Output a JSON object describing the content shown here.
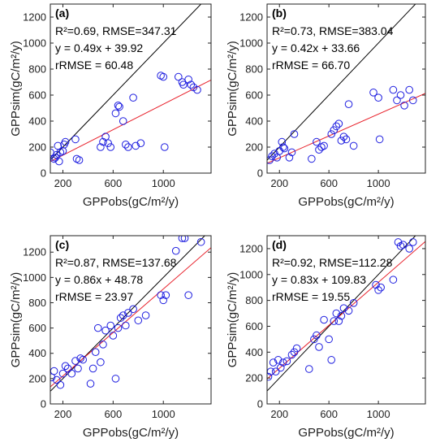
{
  "chart_data": [
    {
      "type": "scatter",
      "panel_label": "(a)",
      "xlabel": "GPPobs(gC/m²/y)",
      "ylabel": "GPPsim(gC/m²/y)",
      "xlim": [
        100,
        1380
      ],
      "ylim": [
        0,
        1300
      ],
      "xticks": [
        200,
        600,
        1000
      ],
      "yticks": [
        0,
        200,
        400,
        600,
        800,
        1000,
        1200
      ],
      "annotations": [
        "R²=0.69, RMSE=347.31",
        "y = 0.49x + 39.92",
        "rRMSE = 60.48"
      ],
      "fit": {
        "slope": 0.49,
        "intercept": 39.92
      },
      "x": [
        100,
        130,
        140,
        150,
        160,
        170,
        180,
        200,
        210,
        220,
        300,
        310,
        330,
        500,
        520,
        540,
        560,
        580,
        620,
        640,
        650,
        680,
        700,
        720,
        760,
        780,
        820,
        980,
        1000,
        1010,
        1120,
        1150,
        1160,
        1200,
        1220,
        1240,
        1270
      ],
      "y": [
        160,
        110,
        120,
        140,
        210,
        90,
        160,
        170,
        220,
        240,
        260,
        110,
        100,
        200,
        240,
        280,
        230,
        200,
        460,
        520,
        510,
        400,
        220,
        200,
        580,
        210,
        230,
        750,
        740,
        200,
        740,
        700,
        680,
        720,
        680,
        660,
        640
      ]
    },
    {
      "type": "scatter",
      "panel_label": "(b)",
      "xlabel": "GPPobs(gC/m²/y)",
      "ylabel": "GPPsim(gC/m²/y)",
      "xlim": [
        100,
        1380
      ],
      "ylim": [
        0,
        1300
      ],
      "xticks": [
        200,
        600,
        1000
      ],
      "yticks": [
        0,
        200,
        400,
        600,
        800,
        1000,
        1200
      ],
      "annotations": [
        "R²=0.73, RMSE=383.04",
        "y = 0.42x + 33.66",
        "rRMSE = 66.70"
      ],
      "fit": {
        "slope": 0.42,
        "intercept": 33.66
      },
      "x": [
        120,
        140,
        160,
        180,
        200,
        220,
        230,
        240,
        280,
        300,
        320,
        460,
        500,
        520,
        540,
        560,
        620,
        640,
        660,
        680,
        700,
        720,
        740,
        760,
        800,
        960,
        1000,
        1010,
        1120,
        1150,
        1180,
        1210,
        1250,
        1280
      ],
      "y": [
        100,
        130,
        150,
        120,
        170,
        240,
        200,
        190,
        120,
        160,
        300,
        110,
        240,
        180,
        200,
        210,
        300,
        330,
        360,
        380,
        250,
        280,
        260,
        530,
        210,
        620,
        580,
        260,
        640,
        560,
        600,
        520,
        640,
        560
      ]
    },
    {
      "type": "scatter",
      "panel_label": "(c)",
      "xlabel": "GPPobs(gC/m²/y)",
      "ylabel": "GPPsim(gC/m²/y)",
      "xlim": [
        100,
        1380
      ],
      "ylim": [
        0,
        1330
      ],
      "xticks": [
        200,
        600,
        1000
      ],
      "yticks": [
        0,
        200,
        400,
        600,
        800,
        1000,
        1200
      ],
      "annotations": [
        "R²=0.87, RMSE=137.68",
        "y = 0.86x + 48.78",
        "rRMSE = 23.97"
      ],
      "fit": {
        "slope": 0.86,
        "intercept": 48.78
      },
      "x": [
        110,
        130,
        150,
        180,
        200,
        220,
        240,
        270,
        300,
        320,
        340,
        360,
        420,
        440,
        460,
        480,
        500,
        520,
        540,
        580,
        600,
        620,
        640,
        660,
        680,
        700,
        720,
        760,
        800,
        860,
        980,
        1000,
        1020,
        1100,
        1150,
        1170,
        1200,
        1300
      ],
      "y": [
        210,
        260,
        190,
        150,
        240,
        300,
        280,
        240,
        340,
        280,
        360,
        350,
        160,
        280,
        410,
        600,
        330,
        470,
        580,
        620,
        540,
        200,
        600,
        680,
        700,
        620,
        720,
        750,
        660,
        700,
        860,
        820,
        860,
        1210,
        1310,
        1310,
        860,
        1280
      ]
    },
    {
      "type": "scatter",
      "panel_label": "(d)",
      "xlabel": "GPPobs(gC/m²/y)",
      "ylabel": "GPPsim(gC/m²/y)",
      "xlim": [
        100,
        1380
      ],
      "ylim": [
        0,
        1300
      ],
      "xticks": [
        200,
        600,
        1000
      ],
      "yticks": [
        0,
        200,
        400,
        600,
        800,
        1000,
        1200
      ],
      "annotations": [
        "R²=0.92, RMSE=112.28",
        "y = 0.83x + 109.83",
        "rRMSE = 19.55"
      ],
      "fit": {
        "slope": 0.83,
        "intercept": 109.83
      },
      "x": [
        110,
        130,
        150,
        170,
        190,
        210,
        230,
        260,
        300,
        320,
        340,
        440,
        480,
        500,
        520,
        560,
        600,
        620,
        640,
        660,
        680,
        700,
        720,
        760,
        800,
        980,
        1000,
        1020,
        1120,
        1160,
        1180,
        1200,
        1250,
        1280
      ],
      "y": [
        210,
        250,
        320,
        250,
        340,
        280,
        320,
        330,
        380,
        400,
        430,
        270,
        500,
        530,
        440,
        650,
        500,
        340,
        640,
        700,
        640,
        680,
        740,
        720,
        780,
        920,
        880,
        900,
        960,
        1250,
        1220,
        1230,
        1200,
        1250
      ]
    }
  ]
}
